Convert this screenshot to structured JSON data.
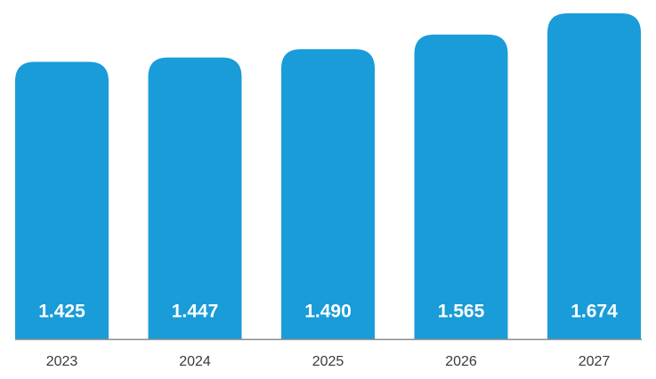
{
  "chart_data": {
    "type": "bar",
    "categories": [
      "2023",
      "2024",
      "2025",
      "2026",
      "2027"
    ],
    "values": [
      1.425,
      1.447,
      1.49,
      1.565,
      1.674
    ],
    "value_labels": [
      "1.425",
      "1.447",
      "1.490",
      "1.565",
      "1.674"
    ],
    "color": "#199cd8"
  }
}
